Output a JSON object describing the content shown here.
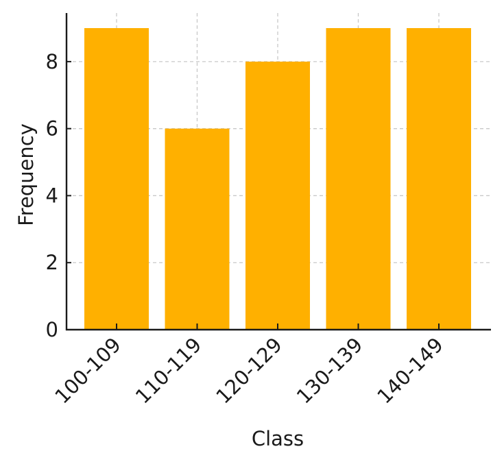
{
  "chart_data": {
    "type": "bar",
    "title": "",
    "xlabel": "Class",
    "ylabel": "Frequency",
    "categories": [
      "100-109",
      "110-119",
      "120-129",
      "130-139",
      "140-149"
    ],
    "values": [
      9,
      6,
      8,
      9,
      9
    ],
    "yticks": [
      "0",
      "2",
      "4",
      "6",
      "8"
    ],
    "ylim": [
      0,
      9.45
    ],
    "grid": true,
    "bar_color": "#ffb000",
    "grid_color": "#c8c8c8",
    "axis_color": "#1a1a1a"
  }
}
